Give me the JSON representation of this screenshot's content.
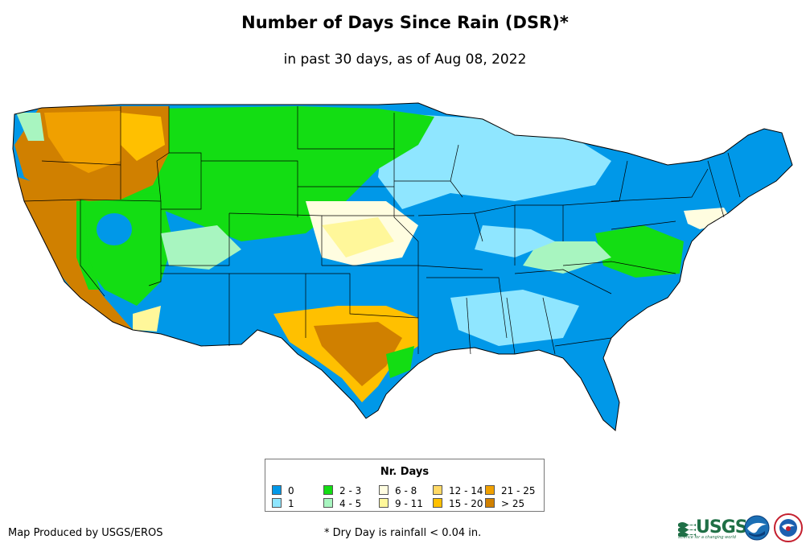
{
  "header": {
    "title": "Number of Days Since Rain (DSR)*",
    "subtitle": "in past 30 days, as of Aug 08, 2022"
  },
  "legend": {
    "title": "Nr. Days",
    "items": [
      {
        "label": "0",
        "color": "#0098e8"
      },
      {
        "label": "1",
        "color": "#8fe6ff"
      },
      {
        "label": "2 - 3",
        "color": "#13dd13"
      },
      {
        "label": "4 - 5",
        "color": "#a8f5c0"
      },
      {
        "label": "6 - 8",
        "color": "#fffde0"
      },
      {
        "label": "9 - 11",
        "color": "#fff79a"
      },
      {
        "label": "12 - 14",
        "color": "#ffd966"
      },
      {
        "label": "15 - 20",
        "color": "#ffc000"
      },
      {
        "label": "21 - 25",
        "color": "#f0a000"
      },
      {
        "label": "> 25",
        "color": "#d08000"
      }
    ]
  },
  "footer": {
    "credit": "Map Produced by USGS/EROS",
    "footnote": "* Dry Day is rainfall < 0.04 in.",
    "usgs_logo": "USGS",
    "usgs_tagline": "science for a changing world"
  },
  "logos": {
    "usgs": "usgs-logo-icon",
    "noaa": "noaa-logo-icon",
    "nws": "nws-logo-icon"
  }
}
